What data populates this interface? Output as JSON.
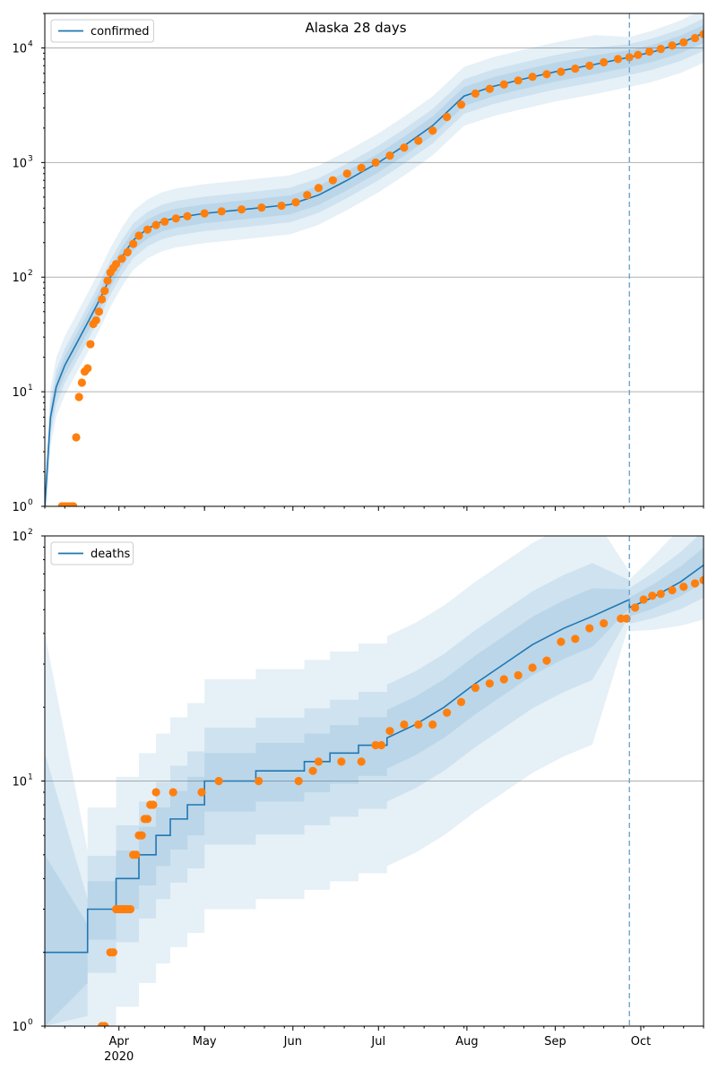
{
  "figure": {
    "title": "Alaska 28 days"
  },
  "chart_data": [
    {
      "type": "line",
      "ylabel": "",
      "xlabel": "",
      "yscale": "log",
      "ylim": [
        1,
        20000
      ],
      "grid": "y-major",
      "legend": {
        "entries": [
          "confirmed"
        ],
        "placement": "top-left"
      },
      "x_domain": [
        "2020-03-06",
        "2020-10-23"
      ],
      "x_ticks": [],
      "y_ticks": [
        {
          "value": 1,
          "label": "10",
          "exp": "0"
        },
        {
          "value": 10,
          "label": "10",
          "exp": "1"
        },
        {
          "value": 100,
          "label": "10",
          "exp": "2"
        },
        {
          "value": 1000,
          "label": "10",
          "exp": "3"
        },
        {
          "value": 10000,
          "label": "10",
          "exp": "4"
        }
      ],
      "forecast_start": "2020-09-27",
      "colors": {
        "model": "#1f77b4",
        "observed": "#ff7f0e",
        "band": "#1f77b4"
      },
      "model": {
        "name": "confirmed",
        "x": [
          "2020-03-06",
          "2020-03-08",
          "2020-03-10",
          "2020-03-13",
          "2020-03-17",
          "2020-03-21",
          "2020-03-25",
          "2020-03-29",
          "2020-04-02",
          "2020-04-06",
          "2020-04-11",
          "2020-04-16",
          "2020-04-21",
          "2020-05-01",
          "2020-05-15",
          "2020-05-31",
          "2020-06-10",
          "2020-06-20",
          "2020-07-01",
          "2020-07-10",
          "2020-07-20",
          "2020-07-31",
          "2020-08-10",
          "2020-08-20",
          "2020-09-01",
          "2020-09-15",
          "2020-09-27",
          "2020-10-05",
          "2020-10-15",
          "2020-10-23"
        ],
        "y": [
          1,
          6,
          11,
          17,
          26,
          40,
          62,
          100,
          150,
          210,
          265,
          305,
          330,
          360,
          390,
          430,
          520,
          700,
          1000,
          1400,
          2100,
          3800,
          4600,
          5300,
          6200,
          7200,
          8300,
          9200,
          11000,
          13500
        ],
        "bands": [
          {
            "lo": 0.55,
            "hi": 1.8,
            "far_hi": 1.5
          },
          {
            "lo": 0.7,
            "hi": 1.4,
            "far_hi": 1.3
          },
          {
            "lo": 0.82,
            "hi": 1.2,
            "far_hi": 1.15
          }
        ]
      },
      "observed": {
        "x": [
          "2020-03-12",
          "2020-03-13",
          "2020-03-14",
          "2020-03-15",
          "2020-03-16",
          "2020-03-17",
          "2020-03-18",
          "2020-03-19",
          "2020-03-20",
          "2020-03-21",
          "2020-03-22",
          "2020-03-23",
          "2020-03-24",
          "2020-03-25",
          "2020-03-26",
          "2020-03-27",
          "2020-03-28",
          "2020-03-29",
          "2020-03-30",
          "2020-03-31",
          "2020-04-02",
          "2020-04-04",
          "2020-04-06",
          "2020-04-08",
          "2020-04-11",
          "2020-04-14",
          "2020-04-17",
          "2020-04-21",
          "2020-04-25",
          "2020-05-01",
          "2020-05-07",
          "2020-05-14",
          "2020-05-21",
          "2020-05-28",
          "2020-06-02",
          "2020-06-06",
          "2020-06-10",
          "2020-06-15",
          "2020-06-20",
          "2020-06-25",
          "2020-06-30",
          "2020-07-05",
          "2020-07-10",
          "2020-07-15",
          "2020-07-20",
          "2020-07-25",
          "2020-07-30",
          "2020-08-04",
          "2020-08-09",
          "2020-08-14",
          "2020-08-19",
          "2020-08-24",
          "2020-08-29",
          "2020-09-03",
          "2020-09-08",
          "2020-09-13",
          "2020-09-18",
          "2020-09-23",
          "2020-09-27",
          "2020-09-30",
          "2020-10-04",
          "2020-10-08",
          "2020-10-12",
          "2020-10-16",
          "2020-10-20",
          "2020-10-23"
        ],
        "y": [
          1,
          1,
          1,
          1,
          1,
          4,
          9,
          12,
          15,
          16,
          26,
          39,
          42,
          50,
          64,
          76,
          93,
          110,
          120,
          130,
          145,
          165,
          195,
          230,
          260,
          285,
          305,
          325,
          340,
          360,
          375,
          390,
          405,
          420,
          450,
          520,
          600,
          700,
          800,
          900,
          1000,
          1150,
          1350,
          1550,
          1900,
          2500,
          3200,
          4000,
          4400,
          4800,
          5200,
          5600,
          5900,
          6200,
          6600,
          7000,
          7500,
          8000,
          8300,
          8700,
          9300,
          9800,
          10500,
          11200,
          12200,
          13200
        ]
      }
    },
    {
      "type": "line",
      "ylabel": "",
      "xlabel": "",
      "yscale": "log",
      "ylim": [
        1,
        100
      ],
      "grid": "y-major",
      "legend": {
        "entries": [
          "deaths"
        ],
        "placement": "top-left"
      },
      "x_domain": [
        "2020-03-06",
        "2020-10-23"
      ],
      "x_ticks": [
        {
          "date": "2020-04-01",
          "label": "Apr",
          "sub": "2020"
        },
        {
          "date": "2020-05-01",
          "label": "May",
          "sub": ""
        },
        {
          "date": "2020-06-01",
          "label": "Jun",
          "sub": ""
        },
        {
          "date": "2020-07-01",
          "label": "Jul",
          "sub": ""
        },
        {
          "date": "2020-08-01",
          "label": "Aug",
          "sub": ""
        },
        {
          "date": "2020-09-01",
          "label": "Sep",
          "sub": ""
        },
        {
          "date": "2020-10-01",
          "label": "Oct",
          "sub": ""
        }
      ],
      "y_ticks": [
        {
          "value": 1,
          "label": "10",
          "exp": "0"
        },
        {
          "value": 10,
          "label": "10",
          "exp": "1"
        },
        {
          "value": 100,
          "label": "10",
          "exp": "2"
        }
      ],
      "forecast_start": "2020-09-27",
      "colors": {
        "model": "#1f77b4",
        "observed": "#ff7f0e",
        "band": "#1f77b4"
      },
      "model": {
        "name": "deaths",
        "x": [
          "2020-03-06",
          "2020-03-21",
          "2020-03-21",
          "2020-03-31",
          "2020-03-31",
          "2020-04-08",
          "2020-04-08",
          "2020-04-14",
          "2020-04-14",
          "2020-04-19",
          "2020-04-19",
          "2020-04-25",
          "2020-04-25",
          "2020-05-01",
          "2020-05-01",
          "2020-05-19",
          "2020-05-19",
          "2020-06-05",
          "2020-06-05",
          "2020-06-14",
          "2020-06-14",
          "2020-06-24",
          "2020-06-24",
          "2020-07-04",
          "2020-07-04",
          "2020-07-14",
          "2020-07-24",
          "2020-08-04",
          "2020-08-14",
          "2020-08-24",
          "2020-09-04",
          "2020-09-14",
          "2020-09-27",
          "2020-09-27",
          "2020-10-05",
          "2020-10-15",
          "2020-10-23"
        ],
        "y": [
          2,
          2,
          3,
          3,
          4,
          4,
          5,
          5,
          6,
          6,
          7,
          7,
          8,
          8,
          10,
          10,
          11,
          11,
          12,
          12,
          13,
          13,
          14,
          14,
          15,
          17,
          20,
          25,
          30,
          36,
          42,
          47,
          55,
          51,
          56,
          65,
          76
        ],
        "bands": [
          {
            "lo": 0.3,
            "hi": 2.6,
            "far_lo": 0.8,
            "far_hi": 1.3,
            "start_lo": 1,
            "start_hi": 40
          },
          {
            "lo": 0.55,
            "hi": 1.65,
            "far_lo": 0.86,
            "far_hi": 1.2,
            "start_lo": 1,
            "start_hi": 13
          },
          {
            "lo": 0.75,
            "hi": 1.3,
            "far_lo": 0.92,
            "far_hi": 1.1,
            "start_lo": 1,
            "start_hi": 5
          }
        ]
      },
      "observed": {
        "x": [
          "2020-03-26",
          "2020-03-27",
          "2020-03-29",
          "2020-03-30",
          "2020-03-31",
          "2020-04-01",
          "2020-04-02",
          "2020-04-03",
          "2020-04-04",
          "2020-04-05",
          "2020-04-06",
          "2020-04-07",
          "2020-04-08",
          "2020-04-09",
          "2020-04-10",
          "2020-04-11",
          "2020-04-12",
          "2020-04-13",
          "2020-04-14",
          "2020-04-20",
          "2020-04-30",
          "2020-05-06",
          "2020-05-20",
          "2020-06-03",
          "2020-06-08",
          "2020-06-10",
          "2020-06-18",
          "2020-06-25",
          "2020-06-30",
          "2020-07-02",
          "2020-07-05",
          "2020-07-10",
          "2020-07-15",
          "2020-07-20",
          "2020-07-25",
          "2020-07-30",
          "2020-08-04",
          "2020-08-09",
          "2020-08-14",
          "2020-08-19",
          "2020-08-24",
          "2020-08-29",
          "2020-09-03",
          "2020-09-08",
          "2020-09-13",
          "2020-09-18",
          "2020-09-24",
          "2020-09-26",
          "2020-09-29",
          "2020-10-02",
          "2020-10-05",
          "2020-10-08",
          "2020-10-12",
          "2020-10-16",
          "2020-10-20",
          "2020-10-23"
        ],
        "y": [
          1,
          1,
          2,
          2,
          3,
          3,
          3,
          3,
          3,
          3,
          5,
          5,
          6,
          6,
          7,
          7,
          8,
          8,
          9,
          9,
          9,
          10,
          10,
          10,
          11,
          12,
          12,
          12,
          14,
          14,
          16,
          17,
          17,
          17,
          19,
          21,
          24,
          25,
          26,
          27,
          29,
          31,
          37,
          38,
          42,
          44,
          46,
          46,
          51,
          55,
          57,
          58,
          60,
          62,
          64,
          66
        ]
      }
    }
  ]
}
